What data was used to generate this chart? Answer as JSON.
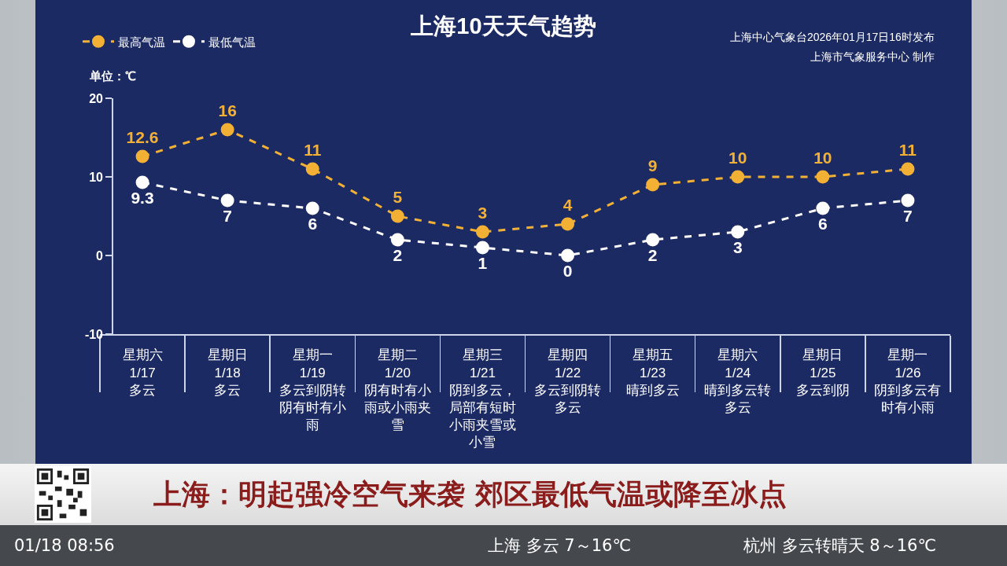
{
  "chart_data": {
    "type": "line",
    "title": "上海10天天气趋势",
    "ylabel": "单位：℃",
    "categories": [
      "星期六 1/17 多云",
      "星期日 1/18 多云",
      "星期一 1/19 多云到阴转阴有时有小雨",
      "星期二 1/20 阴有时有小雨或小雨夹雪",
      "星期三 1/21 阴到多云，局部有短时小雨夹雪或小雪",
      "星期四 1/22 多云到阴转多云",
      "星期五 1/23 晴到多云",
      "星期六 1/24 晴到多云转多云",
      "星期日 1/25 多云到阴",
      "星期一 1/26 阴到多云有时有小雨"
    ],
    "series": [
      {
        "name": "最高气温",
        "color": "#f2b134",
        "values": [
          12.6,
          16,
          11,
          5,
          3,
          4,
          9,
          10,
          10,
          11
        ]
      },
      {
        "name": "最低气温",
        "color": "#ffffff",
        "values": [
          9.3,
          7,
          6,
          2,
          1,
          0,
          2,
          3,
          6,
          7
        ]
      }
    ],
    "ylim": [
      -10,
      20
    ],
    "yticks": [
      -10,
      0,
      10,
      20
    ],
    "legend": "top left",
    "marker": "circle",
    "line_style": "dashed",
    "data_labels": true,
    "annotations": [
      "上海中心气象台2026年01月17日16时发布",
      "上海市气象服务中心 制作",
      "上海：明起强冷空气来袭 郊区最低气温或降至冰点",
      "01/18 08:56",
      "上海 多云 7～16℃",
      "杭州 多云转晴天 8～16℃"
    ]
  }
}
